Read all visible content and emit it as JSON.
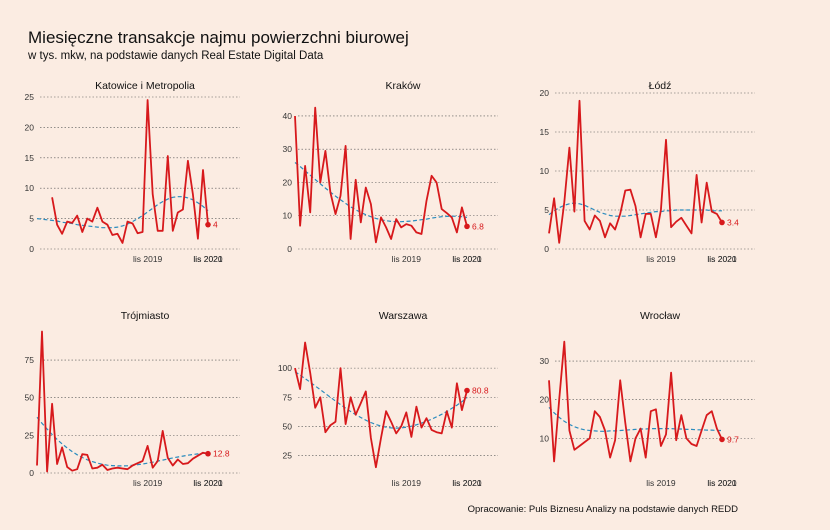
{
  "header": {
    "title": "Miesięczne transakcje najmu powierzchni biurowej",
    "subtitle": "w tys. mkw, na podstawie danych Real Estate Digital Data"
  },
  "footer": {
    "caption": "Opracowanie: Puls Biznesu Analizy na podstawie danych REDD"
  },
  "colors": {
    "series": "#d7191c",
    "trend": "#2b8cbe",
    "grid": "#555555",
    "text": "#333333"
  },
  "chart_data": [
    {
      "type": "line",
      "title": "Katowice i Metropolia",
      "x_ticks": [
        "lis 2019",
        "lis 2020",
        "lis 2021"
      ],
      "y_ticks": [
        0,
        5,
        10,
        15,
        20,
        25
      ],
      "ylim": [
        0,
        25
      ],
      "x_start": "2018-01",
      "values": [
        null,
        null,
        null,
        8.5,
        4.0,
        2.5,
        4.5,
        4.3,
        5.5,
        2.8,
        5.0,
        4.5,
        6.8,
        4.5,
        4.0,
        2.3,
        2.5,
        1.0,
        4.5,
        4.2,
        2.6,
        2.8,
        24.5,
        9.0,
        3.0,
        3.0,
        15.3,
        3.0,
        6.0,
        6.5,
        14.5,
        9.0,
        1.7,
        13.0,
        4.0
      ],
      "trend": [
        5.0,
        4.9,
        4.8,
        4.7,
        4.6,
        4.4,
        4.3,
        4.2,
        4.0,
        3.9,
        3.8,
        3.7,
        3.6,
        3.5,
        3.5,
        3.5,
        3.6,
        3.8,
        4.1,
        4.5,
        5.0,
        5.5,
        6.1,
        6.7,
        7.3,
        7.8,
        8.2,
        8.5,
        8.6,
        8.6,
        8.4,
        8.1,
        7.6,
        7.0,
        6.3
      ],
      "end_label": "4"
    },
    {
      "type": "line",
      "title": "Kraków",
      "x_ticks": [
        "lis 2019",
        "lis 2020",
        "lis 2021"
      ],
      "y_ticks": [
        0,
        10,
        20,
        30,
        40
      ],
      "ylim": [
        0,
        43
      ],
      "x_start": "2018-01",
      "values": [
        40.0,
        7.0,
        25.0,
        11.0,
        42.5,
        20.0,
        29.5,
        17.0,
        10.5,
        16.0,
        31.0,
        3.0,
        20.8,
        8.0,
        18.5,
        13.5,
        2.0,
        9.5,
        6.5,
        3.0,
        9.0,
        6.5,
        7.5,
        7.0,
        5.0,
        4.5,
        14.5,
        22.0,
        20.0,
        12.0,
        10.8,
        9.5,
        5.0,
        12.5,
        6.8
      ],
      "trend": [
        26.0,
        24.8,
        23.5,
        22.2,
        20.9,
        19.6,
        18.3,
        17.1,
        15.9,
        14.8,
        13.7,
        12.7,
        11.8,
        11.0,
        10.3,
        9.7,
        9.2,
        8.8,
        8.5,
        8.3,
        8.2,
        8.2,
        8.3,
        8.4,
        8.6,
        8.8,
        9.0,
        9.3,
        9.5,
        9.7,
        9.8,
        9.9,
        9.8,
        9.7,
        9.5
      ],
      "end_label": "6.8"
    },
    {
      "type": "line",
      "title": "Łódź",
      "x_ticks": [
        "lis 2019",
        "lis 2020",
        "lis 2021"
      ],
      "y_ticks": [
        0,
        5,
        10,
        15,
        20
      ],
      "ylim": [
        0,
        20
      ],
      "x_start": "2018-01",
      "values": [
        2.0,
        6.5,
        0.8,
        6.0,
        13.0,
        4.8,
        19.0,
        3.6,
        2.5,
        4.3,
        3.6,
        1.5,
        3.3,
        2.5,
        4.5,
        7.5,
        7.6,
        5.5,
        1.5,
        4.5,
        4.5,
        1.5,
        5.0,
        14.0,
        2.8,
        3.5,
        4.0,
        3.0,
        2.0,
        9.5,
        3.4,
        8.5,
        4.8,
        4.5,
        3.4
      ],
      "trend": [
        4.4,
        4.9,
        5.3,
        5.6,
        5.8,
        5.9,
        5.8,
        5.6,
        5.3,
        5.0,
        4.7,
        4.5,
        4.3,
        4.2,
        4.2,
        4.2,
        4.3,
        4.4,
        4.5,
        4.6,
        4.7,
        4.8,
        4.8,
        4.9,
        4.9,
        5.0,
        5.0,
        5.0,
        5.0,
        5.0,
        5.0,
        5.0,
        4.9,
        4.9,
        4.9
      ],
      "end_label": "3.4"
    },
    {
      "type": "line",
      "title": "Trójmiasto",
      "x_ticks": [
        "lis 2019",
        "lis 2020",
        "lis 2021"
      ],
      "y_ticks": [
        0,
        25,
        50,
        75
      ],
      "ylim": [
        0,
        95
      ],
      "x_start": "2018-01",
      "values": [
        5.0,
        94.0,
        1.0,
        46.0,
        6.0,
        17.0,
        4.0,
        1.5,
        2.5,
        12.5,
        12.0,
        3.0,
        3.5,
        5.5,
        2.0,
        3.0,
        3.5,
        3.0,
        2.5,
        5.0,
        6.5,
        8.0,
        18.0,
        3.5,
        8.0,
        28.0,
        10.0,
        5.0,
        9.0,
        6.0,
        6.5,
        9.5,
        11.5,
        13.5,
        12.8
      ],
      "trend": [
        37.0,
        33.0,
        29.2,
        25.6,
        22.3,
        19.3,
        16.6,
        14.2,
        12.1,
        10.3,
        8.8,
        7.6,
        6.6,
        5.8,
        5.2,
        4.9,
        4.7,
        4.7,
        4.8,
        5.1,
        5.5,
        6.0,
        6.6,
        7.2,
        7.9,
        8.6,
        9.3,
        10.0,
        10.6,
        11.2,
        11.8,
        12.3,
        12.7,
        13.1,
        13.4
      ],
      "end_label": "12.8"
    },
    {
      "type": "line",
      "title": "Warszawa",
      "x_ticks": [
        "lis 2019",
        "lis 2020",
        "lis 2021"
      ],
      "y_ticks": [
        25,
        50,
        75,
        100
      ],
      "ylim": [
        10,
        125
      ],
      "x_start": "2018-01",
      "values": [
        100.0,
        82.0,
        122.0,
        96.0,
        66.0,
        75.0,
        45.0,
        51.0,
        54.0,
        100.0,
        52.0,
        75.0,
        60.0,
        70.0,
        80.0,
        40.0,
        15.0,
        40.0,
        63.0,
        54.0,
        44.0,
        50.0,
        62.0,
        41.0,
        67.0,
        49.0,
        57.0,
        47.0,
        45.0,
        44.0,
        63.0,
        49.0,
        87.0,
        64.0,
        80.8
      ],
      "trend": [
        97.0,
        94.0,
        91.0,
        87.9,
        84.7,
        81.5,
        78.2,
        75.0,
        71.8,
        68.7,
        65.7,
        62.8,
        60.1,
        57.6,
        55.3,
        53.3,
        51.6,
        50.3,
        49.3,
        48.7,
        48.5,
        48.7,
        49.3,
        50.2,
        51.4,
        52.8,
        54.4,
        56.2,
        58.2,
        60.4,
        62.8,
        65.4,
        68.2,
        71.2,
        74.5
      ],
      "end_label": "80.8"
    },
    {
      "type": "line",
      "title": "Wrocław",
      "x_ticks": [
        "lis 2019",
        "lis 2020",
        "lis 2021"
      ],
      "y_ticks": [
        10,
        20,
        30
      ],
      "ylim": [
        1,
        37
      ],
      "x_start": "2018-01",
      "values": [
        25.0,
        4.0,
        20.0,
        35.0,
        12.0,
        7.0,
        8.0,
        9.0,
        10.0,
        17.0,
        15.5,
        12.0,
        5.0,
        9.5,
        25.0,
        14.0,
        4.0,
        10.0,
        12.5,
        5.0,
        17.0,
        17.5,
        8.0,
        11.0,
        27.0,
        9.5,
        16.0,
        10.0,
        8.5,
        8.0,
        12.0,
        16.0,
        17.0,
        12.5,
        9.7
      ],
      "trend": [
        18.0,
        16.6,
        15.4,
        14.4,
        13.6,
        13.0,
        12.5,
        12.2,
        12.0,
        11.9,
        11.8,
        11.8,
        11.9,
        11.9,
        12.0,
        12.1,
        12.2,
        12.3,
        12.4,
        12.4,
        12.5,
        12.5,
        12.5,
        12.5,
        12.5,
        12.4,
        12.4,
        12.3,
        12.3,
        12.2,
        12.2,
        12.1,
        12.1,
        12.0,
        12.0
      ],
      "end_label": "9.7"
    }
  ]
}
